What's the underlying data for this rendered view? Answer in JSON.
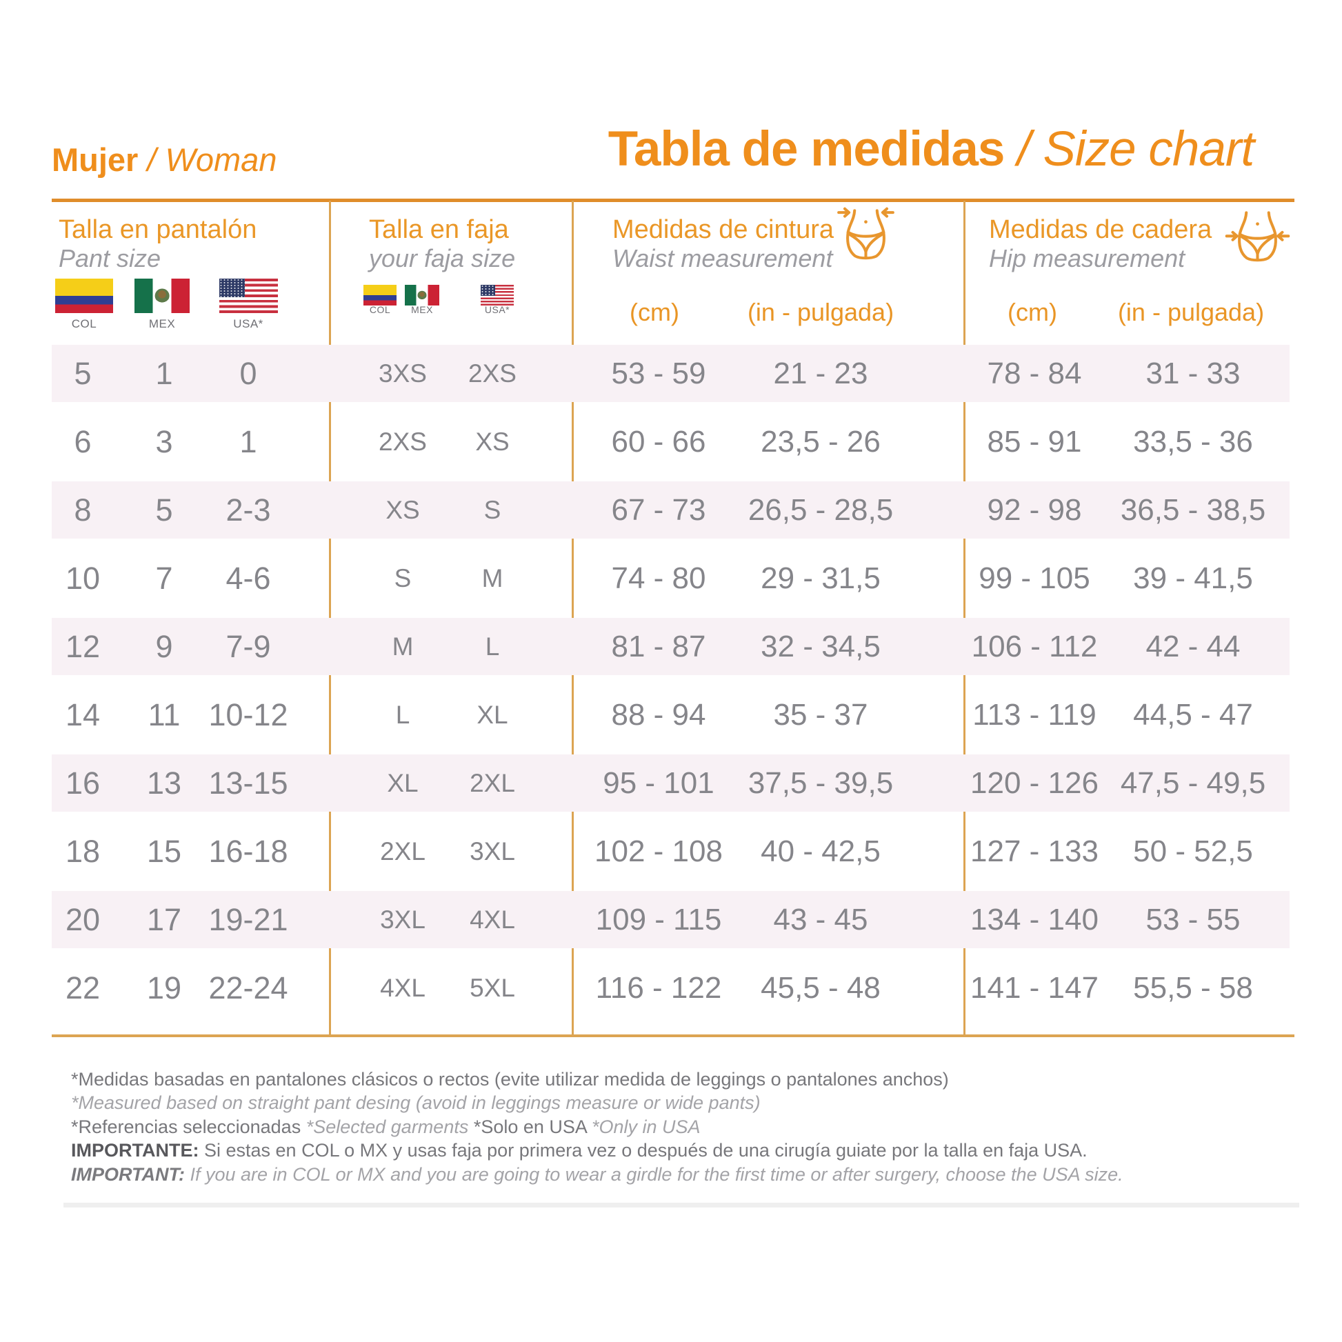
{
  "header": {
    "left_title_bold": "Mujer",
    "left_title_italic": " / Woman",
    "main_title_bold": "Tabla de medidas",
    "main_title_italic": " / Size chart"
  },
  "columns": {
    "pant": {
      "title": "Talla en pantalón",
      "subtitle": "Pant size",
      "flags": [
        {
          "code": "COL"
        },
        {
          "code": "MEX"
        },
        {
          "code": "USA*"
        }
      ]
    },
    "faja": {
      "title": "Talla en faja",
      "subtitle": "your faja size",
      "flags": [
        {
          "code": "COL"
        },
        {
          "code": "MEX"
        },
        {
          "code": "USA*"
        }
      ]
    },
    "waist": {
      "title": "Medidas de cintura",
      "subtitle": "Waist measurement",
      "unit_cm": "(cm)",
      "unit_in": "(in - pulgada)"
    },
    "hip": {
      "title": "Medidas de cadera",
      "subtitle": "Hip measurement",
      "unit_cm": "(cm)",
      "unit_in": "(in - pulgada)"
    }
  },
  "table_rows": [
    {
      "pant": [
        "5",
        "1",
        "0"
      ],
      "faja": [
        "3XS",
        "2XS"
      ],
      "waist": [
        "53 - 59",
        "21 - 23"
      ],
      "hip": [
        "78 - 84",
        "31 - 33"
      ]
    },
    {
      "pant": [
        "6",
        "3",
        "1"
      ],
      "faja": [
        "2XS",
        "XS"
      ],
      "waist": [
        "60 - 66",
        "23,5 - 26"
      ],
      "hip": [
        "85 - 91",
        "33,5 - 36"
      ]
    },
    {
      "pant": [
        "8",
        "5",
        "2-3"
      ],
      "faja": [
        "XS",
        "S"
      ],
      "waist": [
        "67 - 73",
        "26,5 - 28,5"
      ],
      "hip": [
        "92 - 98",
        "36,5 - 38,5"
      ]
    },
    {
      "pant": [
        "10",
        "7",
        "4-6"
      ],
      "faja": [
        "S",
        "M"
      ],
      "waist": [
        "74 - 80",
        "29 - 31,5"
      ],
      "hip": [
        "99 - 105",
        "39 - 41,5"
      ]
    },
    {
      "pant": [
        "12",
        "9",
        "7-9"
      ],
      "faja": [
        "M",
        "L"
      ],
      "waist": [
        "81 - 87",
        "32 - 34,5"
      ],
      "hip": [
        "106 - 112",
        "42 - 44"
      ]
    },
    {
      "pant": [
        "14",
        "11",
        "10-12"
      ],
      "faja": [
        "L",
        "XL"
      ],
      "waist": [
        "88 - 94",
        "35 - 37"
      ],
      "hip": [
        "113 - 119",
        "44,5 - 47"
      ]
    },
    {
      "pant": [
        "16",
        "13",
        "13-15"
      ],
      "faja": [
        "XL",
        "2XL"
      ],
      "waist": [
        "95 - 101",
        "37,5 - 39,5"
      ],
      "hip": [
        "120 - 126",
        "47,5 - 49,5"
      ]
    },
    {
      "pant": [
        "18",
        "15",
        "16-18"
      ],
      "faja": [
        "2XL",
        "3XL"
      ],
      "waist": [
        "102 - 108",
        "40 - 42,5"
      ],
      "hip": [
        "127 - 133",
        "50 - 52,5"
      ]
    },
    {
      "pant": [
        "20",
        "17",
        "19-21"
      ],
      "faja": [
        "3XL",
        "4XL"
      ],
      "waist": [
        "109 - 115",
        "43 - 45"
      ],
      "hip": [
        "134 - 140",
        "53 - 55"
      ]
    },
    {
      "pant": [
        "22",
        "19",
        "22-24"
      ],
      "faja": [
        "4XL",
        "5XL"
      ],
      "waist": [
        "116 - 122",
        "45,5 - 48"
      ],
      "hip": [
        "141 - 147",
        "55,5 - 58"
      ]
    }
  ],
  "notes": {
    "line1": "*Medidas basadas en pantalones clásicos o rectos (evite utilizar medida de leggings o pantalones anchos)",
    "line2": "*Measured based on straight pant desing (avoid in leggings measure or wide pants)",
    "ref_es": "*Referencias seleccionadas ",
    "ref_en": "*Selected garments ",
    "solo_es": "*Solo en USA ",
    "solo_en": "*Only in USA",
    "important_es_label": "IMPORTANTE:",
    "important_es_text": " Si estas en COL o MX y usas faja por primera vez o después de una cirugía guiate por la talla en faja USA.",
    "important_en_label": "IMPORTANT:",
    "important_en_text": " If you are in COL or MX and you are going to wear a girdle for the first time or after surgery, choose the USA size."
  },
  "colors": {
    "accent_orange": "#EF8E1C",
    "border_gold": "#DCA452",
    "row_pink": "#F8F1F5",
    "data_gray": "#85858A",
    "subtitle_gray": "#9C9CA1"
  }
}
